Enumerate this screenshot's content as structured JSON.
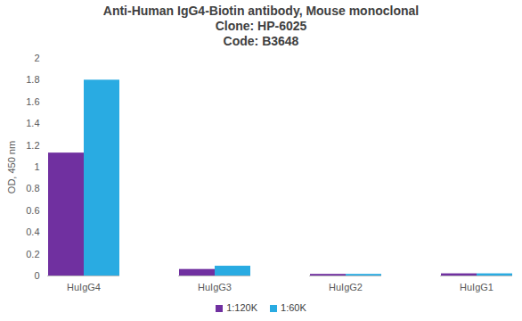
{
  "chart_data": {
    "type": "bar",
    "title": "Anti-Human IgG4-Biotin antibody, Mouse monoclonal",
    "subtitle": [
      "Clone: HP-6025",
      "Code: B3648"
    ],
    "y_label": "OD, 450 nm",
    "categories": [
      "HuIgG4",
      "HuIgG3",
      "HuIgG2",
      "HuIgG1"
    ],
    "series": [
      {
        "name": "1:120K",
        "color": "#7030a0",
        "values": [
          1.13,
          0.06,
          0.015,
          0.02
        ]
      },
      {
        "name": "1:60K",
        "color": "#29abe2",
        "values": [
          1.8,
          0.09,
          0.015,
          0.02
        ]
      }
    ],
    "ylim": [
      0,
      2
    ],
    "yticks": [
      0,
      0.2,
      0.4,
      0.6,
      0.8,
      1,
      1.2,
      1.4,
      1.6,
      1.8,
      2
    ],
    "grid": false,
    "legend": "bottom"
  }
}
